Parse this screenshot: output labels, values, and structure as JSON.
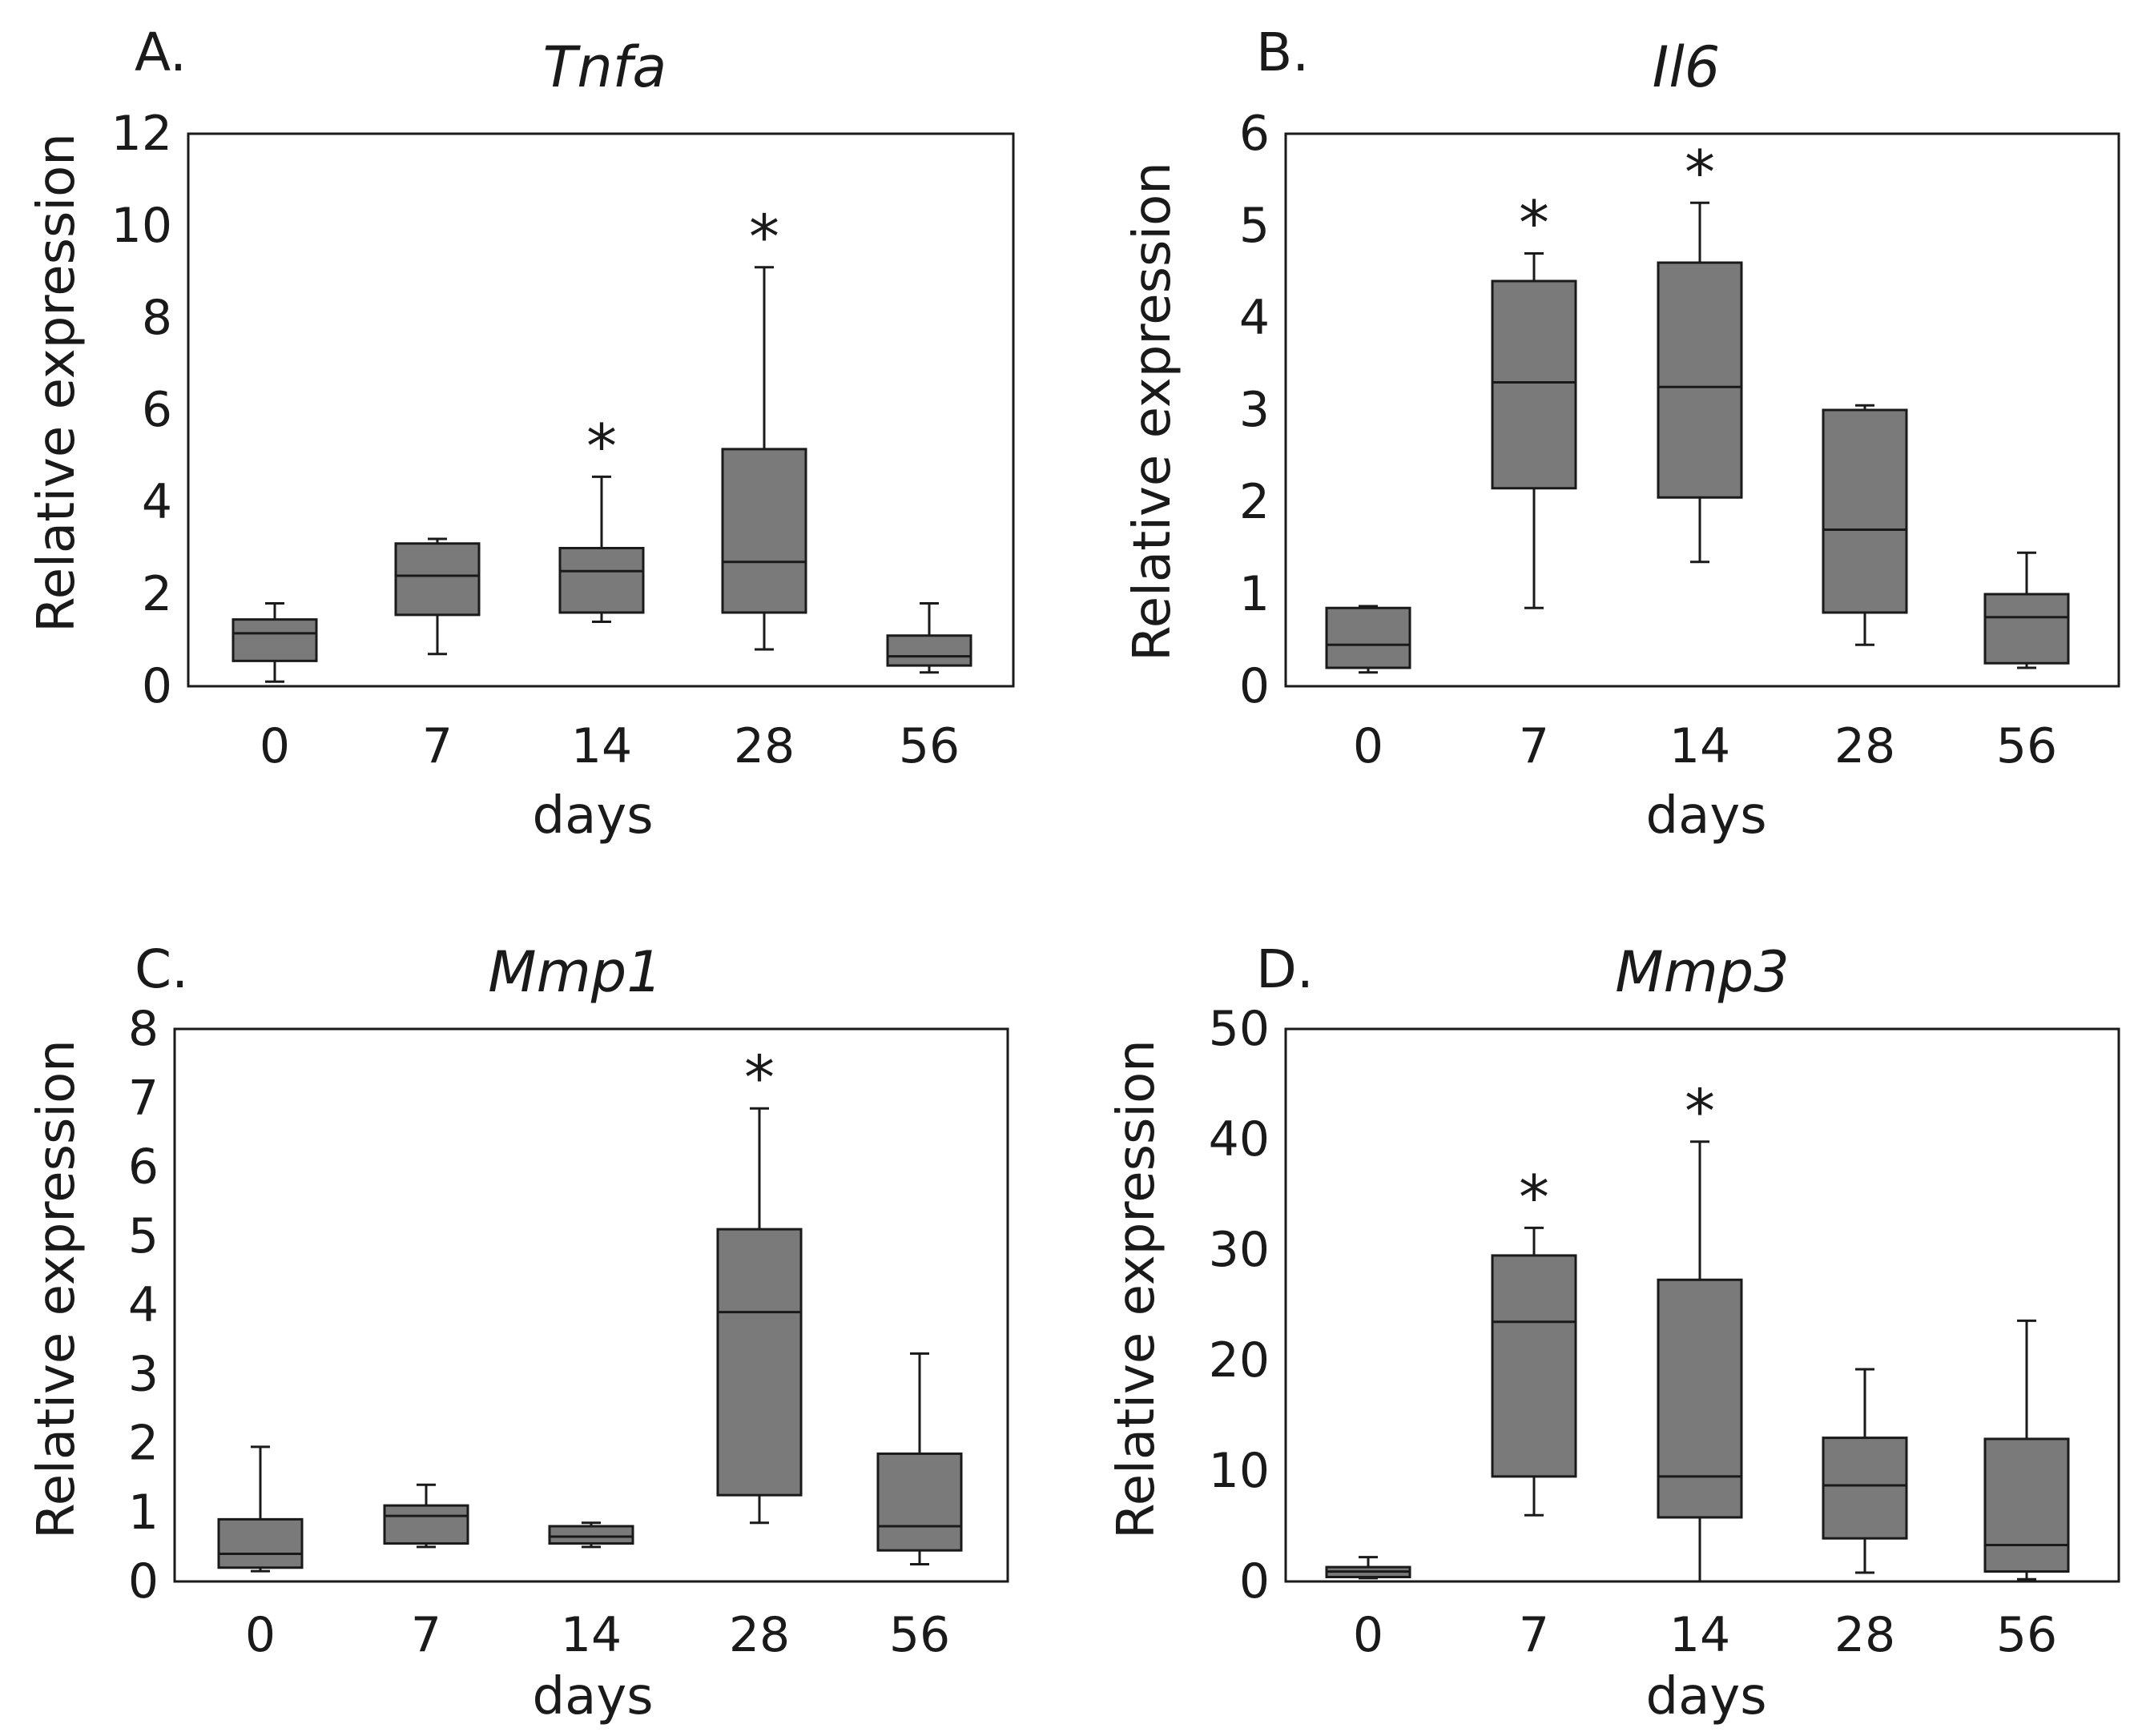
{
  "figure": {
    "box_fill": "#7a7a7a",
    "line_color": "#1a1a1a"
  },
  "chart_data": [
    {
      "type": "box",
      "panel": "A.",
      "title": "Tnfa",
      "xlabel": "days",
      "ylabel": "Relative expression",
      "categories": [
        "0",
        "7",
        "14",
        "28",
        "56"
      ],
      "ylim": [
        0,
        12
      ],
      "yticks": [
        "0",
        "2",
        "4",
        "6",
        "8",
        "10",
        "12"
      ],
      "boxes": [
        {
          "whisker_low": 0.1,
          "q1": 0.55,
          "median": 1.15,
          "q3": 1.45,
          "whisker_high": 1.8
        },
        {
          "whisker_low": 0.7,
          "q1": 1.55,
          "median": 2.4,
          "q3": 3.1,
          "whisker_high": 3.2
        },
        {
          "whisker_low": 1.4,
          "q1": 1.6,
          "median": 2.5,
          "q3": 3.0,
          "whisker_high": 4.55
        },
        {
          "whisker_low": 0.8,
          "q1": 1.6,
          "median": 2.7,
          "q3": 5.15,
          "whisker_high": 9.1
        },
        {
          "whisker_low": 0.3,
          "q1": 0.45,
          "median": 0.65,
          "q3": 1.1,
          "whisker_high": 1.8
        }
      ],
      "significance": [
        "",
        "",
        "*",
        "*",
        ""
      ]
    },
    {
      "type": "box",
      "panel": "B.",
      "title": "Il6",
      "xlabel": "days",
      "ylabel": "Relative expression",
      "categories": [
        "0",
        "7",
        "14",
        "28",
        "56"
      ],
      "ylim": [
        0,
        6
      ],
      "yticks": [
        "0",
        "1",
        "2",
        "3",
        "4",
        "5",
        "6"
      ],
      "boxes": [
        {
          "whisker_low": 0.15,
          "q1": 0.2,
          "median": 0.45,
          "q3": 0.85,
          "whisker_high": 0.87
        },
        {
          "whisker_low": 0.85,
          "q1": 2.15,
          "median": 3.3,
          "q3": 4.4,
          "whisker_high": 4.7
        },
        {
          "whisker_low": 1.35,
          "q1": 2.05,
          "median": 3.25,
          "q3": 4.6,
          "whisker_high": 5.25
        },
        {
          "whisker_low": 0.45,
          "q1": 0.8,
          "median": 1.7,
          "q3": 3.0,
          "whisker_high": 3.05
        },
        {
          "whisker_low": 0.2,
          "q1": 0.25,
          "median": 0.75,
          "q3": 1.0,
          "whisker_high": 1.45
        }
      ],
      "significance": [
        "",
        "*",
        "*",
        "",
        ""
      ]
    },
    {
      "type": "box",
      "panel": "C.",
      "title": "Mmp1",
      "xlabel": "days",
      "ylabel": "Relative expression",
      "categories": [
        "0",
        "7",
        "14",
        "28",
        "56"
      ],
      "ylim": [
        0,
        8
      ],
      "yticks": [
        "0",
        "1",
        "2",
        "3",
        "4",
        "5",
        "6",
        "7",
        "8"
      ],
      "boxes": [
        {
          "whisker_low": 0.15,
          "q1": 0.2,
          "median": 0.4,
          "q3": 0.9,
          "whisker_high": 1.95
        },
        {
          "whisker_low": 0.5,
          "q1": 0.55,
          "median": 0.95,
          "q3": 1.1,
          "whisker_high": 1.4
        },
        {
          "whisker_low": 0.5,
          "q1": 0.55,
          "median": 0.65,
          "q3": 0.8,
          "whisker_high": 0.85
        },
        {
          "whisker_low": 0.85,
          "q1": 1.25,
          "median": 3.9,
          "q3": 5.1,
          "whisker_high": 6.85
        },
        {
          "whisker_low": 0.25,
          "q1": 0.45,
          "median": 0.8,
          "q3": 1.85,
          "whisker_high": 3.3
        }
      ],
      "significance": [
        "",
        "",
        "",
        "*",
        ""
      ]
    },
    {
      "type": "box",
      "panel": "D.",
      "title": "Mmp3",
      "xlabel": "days",
      "ylabel": "Relative expression",
      "categories": [
        "0",
        "7",
        "14",
        "28",
        "56"
      ],
      "ylim": [
        0,
        50
      ],
      "yticks": [
        "0",
        "10",
        "20",
        "30",
        "40",
        "50"
      ],
      "boxes": [
        {
          "whisker_low": 0.3,
          "q1": 0.4,
          "median": 0.9,
          "q3": 1.3,
          "whisker_high": 2.2
        },
        {
          "whisker_low": 6.0,
          "q1": 9.5,
          "median": 23.5,
          "q3": 29.5,
          "whisker_high": 32.0
        },
        {
          "whisker_low": 0.0,
          "q1": 5.8,
          "median": 9.5,
          "q3": 27.3,
          "whisker_high": 39.8
        },
        {
          "whisker_low": 0.8,
          "q1": 3.9,
          "median": 8.7,
          "q3": 13.0,
          "whisker_high": 19.2
        },
        {
          "whisker_low": 0.2,
          "q1": 0.9,
          "median": 3.3,
          "q3": 12.9,
          "whisker_high": 23.6
        }
      ],
      "significance": [
        "",
        "*",
        "*",
        "",
        ""
      ]
    }
  ]
}
